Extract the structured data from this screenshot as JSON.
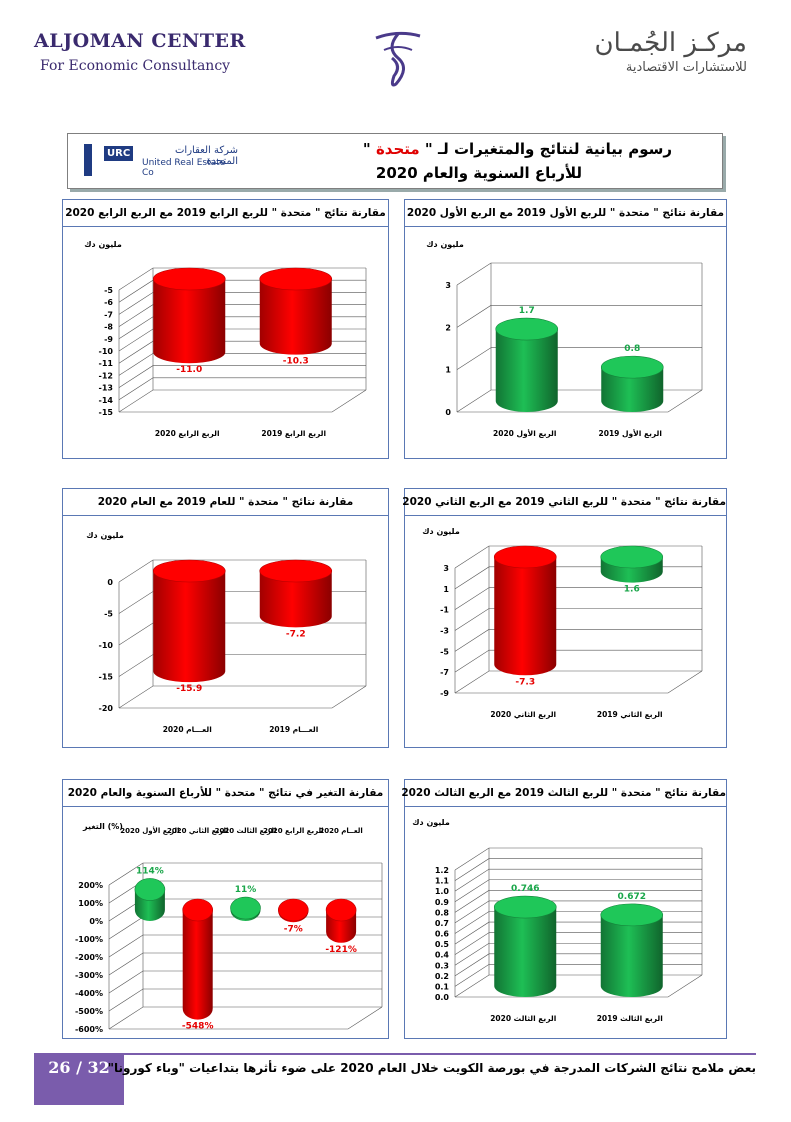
{
  "header": {
    "company_en": "ALJOMAN CENTER",
    "subtitle_en": "For Economic Consultancy",
    "company_ar": "مركـز الجُمـان",
    "subtitle_ar": "للاستشارات الاقتصادية"
  },
  "title_box": {
    "line1_prefix": "رسوم بيانية لنتائج والمتغيرات لـ \"",
    "line1_company": " متحدة ",
    "line1_suffix": "\"",
    "line2": "للأرباع السنوية والعام 2020",
    "logo_badge": "URC",
    "logo_ar": "شركة العقارات المتحدة",
    "logo_en": "United Real Estate Co"
  },
  "footer": {
    "page": "26 / 32",
    "text": "بعض ملامح نتائج الشركات المدرجة في بورصة الكويت خلال العام 2020 على ضوء تأثرها بتداعيات \"وباء كورونا\""
  },
  "colors": {
    "red": "#e60000",
    "green": "#1aa64a",
    "accent": "#7a5cac"
  },
  "chart_data": [
    {
      "id": "q1",
      "type": "bar",
      "title": "مقارنة نتائج \" متحدة \" للربع الأول 2019 مع الربع الأول 2020",
      "unit": "مليون دك",
      "color": "green",
      "categories": [
        "الربع الأول 2020",
        "الربع الأول 2019"
      ],
      "values": [
        1.7,
        0.8
      ],
      "labels": [
        "1.7",
        "0.8"
      ],
      "ylim": [
        0,
        3
      ],
      "ticks": [
        "3",
        "2",
        "1",
        "0"
      ]
    },
    {
      "id": "q4",
      "type": "bar",
      "title": "مقارنة نتائج \" متحدة \" للربع الرابع 2019 مع الربع الرابع 2020",
      "unit": "مليون دك",
      "color": "red",
      "categories": [
        "الربع الرابع 2020",
        "الربع الرابع 2019"
      ],
      "values": [
        -11.0,
        -10.3
      ],
      "labels": [
        "-11.0",
        "-10.3"
      ],
      "ylim": [
        -15,
        -5
      ],
      "ticks": [
        "-5",
        "-6",
        "-7",
        "-8",
        "-9",
        "-10",
        "-11",
        "-12",
        "-13",
        "-14",
        "-15"
      ]
    },
    {
      "id": "q2",
      "type": "bar",
      "title": "مقارنة نتائج \" متحدة \" للربع الثاني 2019 مع الربع الثاني 2020",
      "unit": "مليون دك",
      "color": "mixed",
      "categories": [
        "الربع الثاني 2020",
        "الربع الثاني 2019"
      ],
      "values": [
        -7.3,
        1.6
      ],
      "labels": [
        "-7.3",
        "1.6"
      ],
      "ylim": [
        -9,
        3
      ],
      "ticks": [
        "3",
        "1",
        "-1",
        "-3",
        "-5",
        "-7",
        "-9"
      ]
    },
    {
      "id": "year",
      "type": "bar",
      "title": "مقارنة نتائج \" متحدة \" للعام 2019 مع العام 2020",
      "unit": "مليون دك",
      "color": "red",
      "categories": [
        "العـــام 2020",
        "العـــام 2019"
      ],
      "values": [
        -15.9,
        -7.2
      ],
      "labels": [
        "-15.9",
        "-7.2"
      ],
      "ylim": [
        -20,
        0
      ],
      "ticks": [
        "0",
        "-5",
        "-10",
        "-15",
        "-20"
      ]
    },
    {
      "id": "q3",
      "type": "bar",
      "title": "مقارنة نتائج \" متحدة \" للربع الثالث 2019 مع الربع الثالث 2020",
      "unit": "مليون دك",
      "color": "green",
      "categories": [
        "الربع الثالث 2020",
        "الربع الثالث 2019"
      ],
      "values": [
        0.746,
        0.672
      ],
      "labels": [
        "0.746",
        "0.672"
      ],
      "ylim": [
        0,
        1.2
      ],
      "ticks": [
        "1.2",
        "1.1",
        "1.0",
        "0.9",
        "0.8",
        "0.7",
        "0.6",
        "0.5",
        "0.4",
        "0.3",
        "0.2",
        "0.1",
        "0.0"
      ]
    },
    {
      "id": "change",
      "type": "bar",
      "title": "مقارنة التغير في نتائج \" متحدة \" للأرباع السنوية والعام 2020",
      "unit": "التغير (%)",
      "color": "mixed",
      "categories": [
        "الربع الأول 2020",
        "الربع الثاني 2020",
        "الربع الثالث 2020",
        "الربع الرابع 2020",
        "العــام 2020"
      ],
      "values": [
        114,
        -548,
        11,
        -7,
        -121
      ],
      "labels": [
        "114%",
        "-548%",
        "11%",
        "-7%",
        "-121%"
      ],
      "ylim": [
        -600,
        200
      ],
      "ticks": [
        "200%",
        "100%",
        "0%",
        "-100%",
        "-200%",
        "-300%",
        "-400%",
        "-500%",
        "-600%"
      ]
    }
  ]
}
